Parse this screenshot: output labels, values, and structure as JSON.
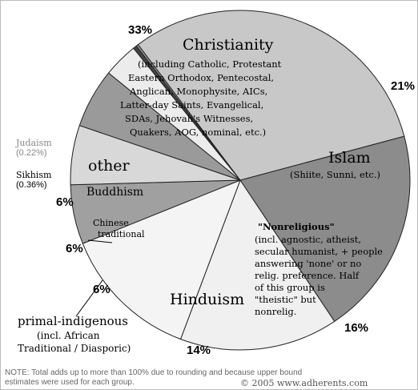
{
  "chart_data": {
    "type": "pie",
    "unit": "percent",
    "slices": [
      {
        "name": "Christianity",
        "value": 33,
        "percent_label": "33%",
        "color": "#c8c8c8",
        "note_lines": [
          "(including Catholic, Protestant",
          "Eastern Orthodox, Pentecostal,",
          "Anglican, Monophysite, AICs,",
          "Latter-day Saints, Evangelical,",
          "SDAs, Jehovah's Witnesses,",
          "Quakers, AOG, nominal, etc.)"
        ]
      },
      {
        "name": "Islam",
        "value": 21,
        "percent_label": "21%",
        "color": "#8c8c8c",
        "note_lines": [
          "(Shiite, Sunni, etc.)"
        ]
      },
      {
        "name": "\"Nonreligious\"",
        "value": 16,
        "percent_label": "16%",
        "color": "#f0f0f0",
        "note_lines": [
          "(incl. agnostic, atheist,",
          "secular humanist, + people",
          "answering 'none' or no",
          "relig. preference. Half",
          "of this group is",
          "\"theistic\" but",
          "nonrelig."
        ]
      },
      {
        "name": "Hinduism",
        "value": 14,
        "percent_label": "14%",
        "color": "#f4f4f4",
        "note_lines": []
      },
      {
        "name": "primal-indigenous",
        "value": 6,
        "percent_label": "6%",
        "color": "#a0a0a0",
        "note_lines": [
          "(incl. African",
          "Traditional / Diasporic)"
        ]
      },
      {
        "name": "Chinese traditional",
        "value": 6,
        "percent_label": "6%",
        "color": "#d8d8d8",
        "name_lines": [
          "Chinese",
          "traditional"
        ]
      },
      {
        "name": "Buddhism",
        "value": 6,
        "percent_label": "6%",
        "color": "#9a9a9a"
      },
      {
        "name": "other",
        "value": 3.5,
        "percent_label": "",
        "color": "#ececec"
      },
      {
        "name": "Sikhism",
        "value": 0.36,
        "percent_label": "(0.36%)",
        "color": "#444444"
      },
      {
        "name": "Judaism",
        "value": 0.22,
        "percent_label": "(0.22%)",
        "color": "#999999"
      }
    ]
  },
  "footnote": {
    "lines": [
      "NOTE: Total adds up to more than 100% due to rounding and because upper bound",
      "estimates were used for each group."
    ],
    "copyright": "© 2005 www.adherents.com"
  }
}
